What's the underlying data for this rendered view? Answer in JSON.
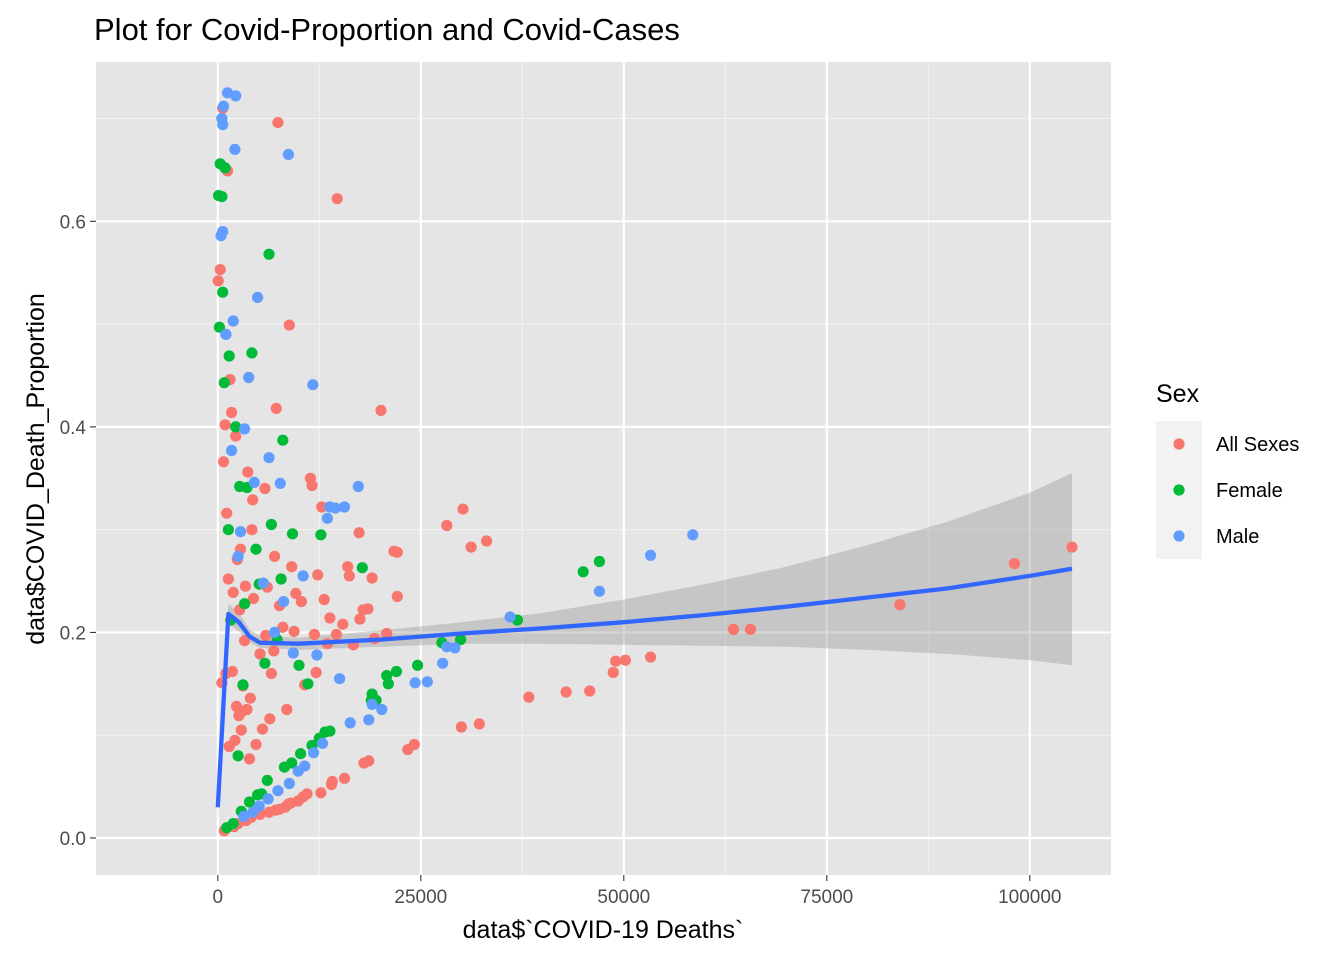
{
  "chart_data": {
    "type": "scatter",
    "title": "Plot for Covid-Proportion and Covid-Cases",
    "xlabel": "data$`COVID-19 Deaths`",
    "ylabel": "data$COVID_Death_Proportion",
    "xlim": [
      -15000,
      110000
    ],
    "ylim": [
      -0.036,
      0.755
    ],
    "x_ticks": [
      0,
      25000,
      50000,
      75000,
      100000
    ],
    "x_tick_labels": [
      "0",
      "25000",
      "50000",
      "75000",
      "100000"
    ],
    "y_ticks": [
      0.0,
      0.2,
      0.4,
      0.6
    ],
    "y_tick_labels": [
      "0.0",
      "0.2",
      "0.4",
      "0.6"
    ],
    "grid": true,
    "background": "#E5E5E5",
    "legend": {
      "title": "Sex",
      "placement": "right",
      "entries": [
        {
          "label": "All Sexes",
          "color": "#F8766D"
        },
        {
          "label": "Female",
          "color": "#00BA38"
        },
        {
          "label": "Male",
          "color": "#619CFF"
        }
      ]
    },
    "series": [
      {
        "name": "All Sexes",
        "color": "#F8766D",
        "x": [
          105200,
          98100,
          84000,
          65600,
          63500,
          53300,
          50200,
          49000,
          48700,
          45800,
          42900,
          38300,
          33100,
          32200,
          31200,
          30200,
          30000,
          28200,
          24200,
          23400,
          22100,
          19000,
          18600,
          18000,
          16000,
          15600,
          14100,
          14000,
          13500,
          12700,
          11000,
          10500,
          9900,
          9000,
          8700,
          8300,
          7600,
          7100,
          6300,
          5200,
          4100,
          3500,
          2500,
          2000,
          800,
          20100,
          17400,
          17900,
          21700,
          19300,
          14700,
          11400,
          8800,
          7200,
          5800,
          4200,
          2400,
          12800,
          22100,
          20800,
          11600,
          13100,
          15400,
          7600,
          5200,
          3100,
          2600,
          4000,
          9400,
          11900,
          13800,
          5900,
          6900,
          4400,
          2800,
          1900,
          1100,
          700,
          900,
          1500,
          3700,
          2200,
          1700,
          4300,
          7000,
          9100,
          10300,
          12300,
          6100,
          8000,
          3400,
          1300,
          2700,
          3300,
          6600,
          500,
          1000,
          1800,
          2300,
          3000,
          3600,
          2900,
          2100,
          1400,
          3900,
          4700,
          5500,
          6400,
          8500,
          10700,
          12100,
          14600,
          16700,
          18500,
          17500,
          16200,
          9600,
          7400,
          600,
          1200,
          300,
          50
        ],
        "y": [
          0.283,
          0.267,
          0.227,
          0.203,
          0.203,
          0.176,
          0.173,
          0.172,
          0.161,
          0.143,
          0.142,
          0.137,
          0.289,
          0.111,
          0.283,
          0.32,
          0.108,
          0.304,
          0.091,
          0.086,
          0.235,
          0.253,
          0.075,
          0.073,
          0.264,
          0.058,
          0.055,
          0.052,
          0.189,
          0.044,
          0.043,
          0.04,
          0.036,
          0.034,
          0.033,
          0.03,
          0.028,
          0.027,
          0.025,
          0.023,
          0.02,
          0.017,
          0.014,
          0.011,
          0.007,
          0.416,
          0.297,
          0.222,
          0.279,
          0.194,
          0.622,
          0.35,
          0.499,
          0.418,
          0.34,
          0.3,
          0.271,
          0.322,
          0.278,
          0.199,
          0.343,
          0.232,
          0.208,
          0.226,
          0.179,
          0.148,
          0.119,
          0.136,
          0.201,
          0.198,
          0.214,
          0.197,
          0.182,
          0.233,
          0.281,
          0.239,
          0.316,
          0.366,
          0.402,
          0.446,
          0.356,
          0.391,
          0.414,
          0.329,
          0.274,
          0.264,
          0.23,
          0.256,
          0.244,
          0.205,
          0.245,
          0.252,
          0.222,
          0.192,
          0.16,
          0.151,
          0.16,
          0.162,
          0.128,
          0.123,
          0.125,
          0.105,
          0.095,
          0.089,
          0.077,
          0.091,
          0.106,
          0.116,
          0.125,
          0.149,
          0.161,
          0.198,
          0.188,
          0.223,
          0.213,
          0.255,
          0.238,
          0.696,
          0.71,
          0.649,
          0.553,
          0.542
        ],
        "points_shown": "representative subset"
      },
      {
        "name": "Female",
        "color": "#00BA38",
        "x": [
          47000,
          45000,
          36900,
          29900,
          27600,
          24600,
          22000,
          21000,
          20800,
          19500,
          19000,
          18900,
          13800,
          13200,
          12500,
          11600,
          10200,
          9100,
          8200,
          6100,
          6300,
          5400,
          4900,
          3900,
          2900,
          1900,
          1100,
          900,
          500,
          300,
          100,
          8000,
          2700,
          4200,
          6600,
          9200,
          7800,
          17800,
          12700,
          5800,
          3300,
          1600,
          800,
          1400,
          2200,
          3600,
          4700,
          5100,
          7300,
          10000,
          11100,
          600,
          200,
          3100,
          1300,
          2500
        ],
        "y": [
          0.269,
          0.259,
          0.212,
          0.193,
          0.19,
          0.168,
          0.162,
          0.15,
          0.158,
          0.134,
          0.14,
          0.134,
          0.104,
          0.103,
          0.097,
          0.09,
          0.082,
          0.073,
          0.069,
          0.056,
          0.568,
          0.043,
          0.042,
          0.035,
          0.026,
          0.014,
          0.01,
          0.652,
          0.624,
          0.656,
          0.625,
          0.387,
          0.342,
          0.472,
          0.305,
          0.296,
          0.252,
          0.263,
          0.295,
          0.17,
          0.228,
          0.212,
          0.443,
          0.469,
          0.4,
          0.341,
          0.281,
          0.247,
          0.193,
          0.168,
          0.15,
          0.531,
          0.497,
          0.149,
          0.3,
          0.08
        ],
        "points_shown": "representative subset"
      },
      {
        "name": "Male",
        "color": "#619CFF",
        "x": [
          58500,
          53300,
          47000,
          36000,
          29200,
          28200,
          27700,
          25800,
          24300,
          20200,
          19000,
          18600,
          17300,
          16300,
          15600,
          14500,
          13800,
          12900,
          11800,
          10700,
          9900,
          8800,
          7400,
          6200,
          5100,
          4300,
          3200,
          2100,
          1200,
          700,
          600,
          500,
          2200,
          8700,
          4900,
          6300,
          11700,
          13500,
          8100,
          10500,
          7700,
          4500,
          2800,
          1700,
          1000,
          400,
          3800,
          5600,
          7000,
          9300,
          12200,
          15000,
          1900,
          3300,
          2500,
          600
        ],
        "y": [
          0.295,
          0.275,
          0.24,
          0.215,
          0.185,
          0.186,
          0.17,
          0.152,
          0.151,
          0.125,
          0.13,
          0.115,
          0.342,
          0.112,
          0.322,
          0.321,
          0.322,
          0.092,
          0.083,
          0.07,
          0.065,
          0.053,
          0.046,
          0.038,
          0.031,
          0.025,
          0.021,
          0.67,
          0.725,
          0.712,
          0.694,
          0.7,
          0.722,
          0.665,
          0.526,
          0.37,
          0.441,
          0.311,
          0.23,
          0.255,
          0.345,
          0.346,
          0.298,
          0.377,
          0.49,
          0.586,
          0.448,
          0.248,
          0.2,
          0.18,
          0.178,
          0.155,
          0.503,
          0.398,
          0.274,
          0.59
        ],
        "points_shown": "representative subset"
      }
    ],
    "smooth": {
      "color": "#3366FF",
      "ribbon_color": "#999999",
      "x": [
        0,
        1300,
        2600,
        3900,
        5200,
        10000,
        20000,
        30000,
        40000,
        50000,
        60000,
        70000,
        80000,
        90000,
        100000,
        105200
      ],
      "y": [
        0.03,
        0.218,
        0.21,
        0.196,
        0.19,
        0.189,
        0.193,
        0.199,
        0.204,
        0.21,
        0.217,
        0.225,
        0.234,
        0.243,
        0.255,
        0.262
      ],
      "lower": [
        0.02,
        0.208,
        0.201,
        0.19,
        0.185,
        0.183,
        0.186,
        0.189,
        0.189,
        0.188,
        0.187,
        0.186,
        0.183,
        0.179,
        0.173,
        0.168
      ],
      "upper": [
        0.04,
        0.228,
        0.219,
        0.203,
        0.196,
        0.195,
        0.202,
        0.21,
        0.219,
        0.232,
        0.247,
        0.264,
        0.285,
        0.308,
        0.336,
        0.355
      ]
    }
  }
}
